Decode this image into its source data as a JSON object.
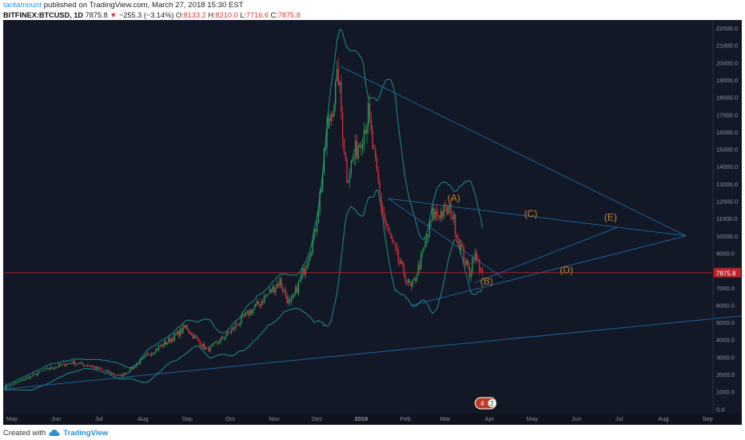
{
  "header": {
    "author": "tantamount",
    "published_text": "published on TradingView.com, March 27, 2018 15:30 EST",
    "symbol": "BITFINEX:BTCUSD, 1D",
    "last": "7875.8",
    "change_symbol": "▼",
    "change": "−255.3 (−3.14%)",
    "o_label": "O:",
    "o_value": "8133.2",
    "h_label": "H:",
    "h_value": "8210.0",
    "l_label": "L:",
    "l_value": "7716.6",
    "c_label": "C:",
    "c_value": "7875.8"
  },
  "footer": {
    "created_with": "Created with",
    "brand": "TradingView",
    "brand_icon": "tradingview-cloud-icon"
  },
  "colors": {
    "background": "#121826",
    "up": "#26a65b",
    "down": "#e0323c",
    "bollinger": "#1f8f8a",
    "trendline": "#1e6fa8",
    "label": "#c8842c",
    "price_line": "#b7222b"
  },
  "chart_data": {
    "type": "candlestick",
    "symbol": "BITFINEX:BTCUSD",
    "interval": "1D",
    "x_ticks": [
      "May",
      "Jun",
      "Jul",
      "Aug",
      "Sep",
      "Oct",
      "Nov",
      "Dec",
      "2018",
      "Feb",
      "Mar",
      "Apr",
      "May",
      "Jun",
      "Jul",
      "Aug",
      "Sep"
    ],
    "y_ticks": [
      "0.0",
      "1000.0",
      "2000.0",
      "3000.0",
      "4000.0",
      "5000.0",
      "6000.0",
      "7000.0",
      "8000.0",
      "9000.0",
      "10000.0",
      "11000.0",
      "12000.0",
      "13000.0",
      "14000.0",
      "15000.0",
      "16000.0",
      "17000.0",
      "18000.0",
      "19000.0",
      "20000.0",
      "21000.0",
      "22000.0"
    ],
    "ylim": [
      0,
      22000
    ],
    "current_price": 7875.8,
    "current_price_label": "7875.8",
    "ohlc_last": {
      "open": 8133.2,
      "high": 8210.0,
      "low": 7716.6,
      "close": 7875.8,
      "change": -255.3,
      "change_pct": -3.14
    },
    "price_path": [
      {
        "date": "2017-04-26",
        "close": 1250
      },
      {
        "date": "2017-05-10",
        "close": 1750
      },
      {
        "date": "2017-05-25",
        "close": 2300
      },
      {
        "date": "2017-06-12",
        "close": 2700
      },
      {
        "date": "2017-06-25",
        "close": 2500
      },
      {
        "date": "2017-07-16",
        "close": 1900
      },
      {
        "date": "2017-08-05",
        "close": 3200
      },
      {
        "date": "2017-08-31",
        "close": 4750
      },
      {
        "date": "2017-09-15",
        "close": 3400
      },
      {
        "date": "2017-10-12",
        "close": 5400
      },
      {
        "date": "2017-11-05",
        "close": 7400
      },
      {
        "date": "2017-11-12",
        "close": 6000
      },
      {
        "date": "2017-11-29",
        "close": 10000
      },
      {
        "date": "2017-12-08",
        "close": 16000
      },
      {
        "date": "2017-12-16",
        "close": 19300
      },
      {
        "date": "2017-12-22",
        "close": 13500
      },
      {
        "date": "2018-01-06",
        "close": 17000
      },
      {
        "date": "2018-01-17",
        "close": 11000
      },
      {
        "date": "2018-02-05",
        "close": 6900
      },
      {
        "date": "2018-02-20",
        "close": 11200
      },
      {
        "date": "2018-03-05",
        "close": 11500
      },
      {
        "date": "2018-03-18",
        "close": 7800
      },
      {
        "date": "2018-03-21",
        "close": 9000
      },
      {
        "date": "2018-03-27",
        "close": 7875.8
      }
    ],
    "indicators": [
      "Bollinger Bands"
    ],
    "wave_labels": [
      {
        "label": "(A)",
        "date": "2018-03-07",
        "price": 12000
      },
      {
        "label": "(B)",
        "date": "2018-03-30",
        "price": 7200
      },
      {
        "label": "(C)",
        "date": "2018-04-30",
        "price": 11100
      },
      {
        "label": "(D)",
        "date": "2018-05-25",
        "price": 7850
      },
      {
        "label": "(E)",
        "date": "2018-06-25",
        "price": 10900
      }
    ],
    "trendlines": [
      {
        "from": {
          "date": "2017-12-17",
          "price": 19800
        },
        "to": {
          "date": "2018-08-17",
          "price": 10000
        }
      },
      {
        "from": {
          "date": "2018-01-20",
          "price": 12150
        },
        "to": {
          "date": "2018-08-17",
          "price": 10000
        }
      },
      {
        "from": {
          "date": "2018-01-20",
          "price": 12150
        },
        "to": {
          "date": "2018-04-10",
          "price": 7600
        }
      },
      {
        "from": {
          "date": "2018-02-06",
          "price": 6000
        },
        "to": {
          "date": "2018-08-17",
          "price": 10000
        }
      },
      {
        "from": {
          "date": "2018-03-22",
          "price": 7300
        },
        "to": {
          "date": "2018-06-30",
          "price": 10500
        }
      },
      {
        "from": {
          "date": "2017-03-26",
          "price": 900
        },
        "to": {
          "date": "2018-10-10",
          "price": 5500
        }
      }
    ],
    "badges": [
      "4",
      "2"
    ]
  }
}
